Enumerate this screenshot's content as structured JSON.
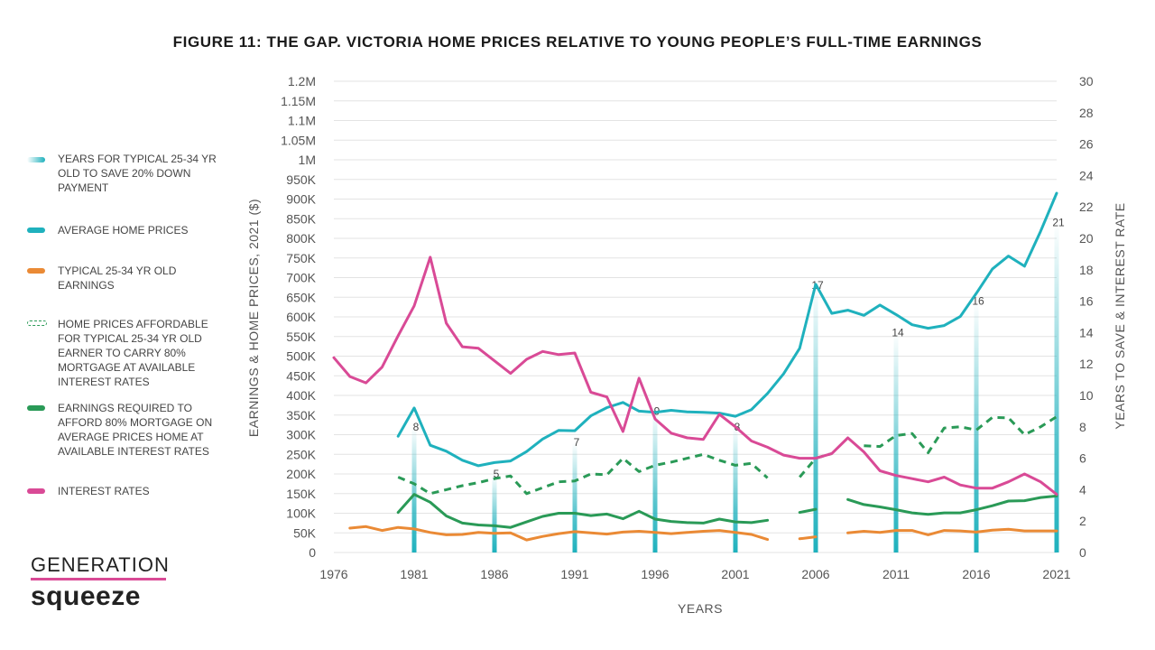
{
  "chart_data": {
    "type": "line",
    "title": "FIGURE 11: THE GAP. VICTORIA HOME PRICES RELATIVE TO YOUNG PEOPLE’S FULL-TIME EARNINGS",
    "xlabel": "YEARS",
    "ylabel_left": "EARNINGS & HOME PRICES, 2021 ($)",
    "ylabel_right": "YEARS TO SAVE & INTEREST RATE",
    "xlim": [
      1976,
      2021
    ],
    "ylim_left": [
      0,
      1200000
    ],
    "ylim_right": [
      0,
      30
    ],
    "x_ticks": [
      1976,
      1981,
      1986,
      1991,
      1996,
      2001,
      2006,
      2011,
      2016,
      2021
    ],
    "y_left_ticks": [
      {
        "v": 0,
        "label": "0"
      },
      {
        "v": 50000,
        "label": "50K"
      },
      {
        "v": 100000,
        "label": "100K"
      },
      {
        "v": 150000,
        "label": "150K"
      },
      {
        "v": 200000,
        "label": "200K"
      },
      {
        "v": 250000,
        "label": "250K"
      },
      {
        "v": 300000,
        "label": "300K"
      },
      {
        "v": 350000,
        "label": "350K"
      },
      {
        "v": 400000,
        "label": "400K"
      },
      {
        "v": 450000,
        "label": "450K"
      },
      {
        "v": 500000,
        "label": "500K"
      },
      {
        "v": 550000,
        "label": "550K"
      },
      {
        "v": 600000,
        "label": "600K"
      },
      {
        "v": 650000,
        "label": "650K"
      },
      {
        "v": 700000,
        "label": "700K"
      },
      {
        "v": 750000,
        "label": "750K"
      },
      {
        "v": 800000,
        "label": "800K"
      },
      {
        "v": 850000,
        "label": "850K"
      },
      {
        "v": 900000,
        "label": "900K"
      },
      {
        "v": 950000,
        "label": "950K"
      },
      {
        "v": 1000000,
        "label": "1M"
      },
      {
        "v": 1050000,
        "label": "1.05M"
      },
      {
        "v": 1100000,
        "label": "1.1M"
      },
      {
        "v": 1150000,
        "label": "1.15M"
      },
      {
        "v": 1200000,
        "label": "1.2M"
      }
    ],
    "y_right_ticks": [
      0,
      2,
      4,
      6,
      8,
      10,
      12,
      14,
      16,
      18,
      20,
      22,
      24,
      26,
      28,
      30
    ],
    "grid": true,
    "legend_position": "left",
    "bars": {
      "name": "YEARS FOR TYPICAL 25-34 YR OLD TO SAVE 20% DOWN PAYMENT",
      "color": "#22b3bf",
      "points": [
        {
          "x": 1981,
          "y": 8
        },
        {
          "x": 1986,
          "y": 5
        },
        {
          "x": 1991,
          "y": 7
        },
        {
          "x": 1996,
          "y": 9
        },
        {
          "x": 2001,
          "y": 8
        },
        {
          "x": 2006,
          "y": 17
        },
        {
          "x": 2011,
          "y": 14
        },
        {
          "x": 2016,
          "y": 16
        },
        {
          "x": 2021,
          "y": 21
        }
      ]
    },
    "series": [
      {
        "name": "AVERAGE HOME PRICES",
        "color": "#1fb1bd",
        "axis": "left",
        "dash": false,
        "points": [
          [
            1980,
            296000
          ],
          [
            1981,
            368000
          ],
          [
            1982,
            273000
          ],
          [
            1983,
            258000
          ],
          [
            1984,
            235000
          ],
          [
            1985,
            221000
          ],
          [
            1986,
            229000
          ],
          [
            1987,
            233000
          ],
          [
            1988,
            257000
          ],
          [
            1989,
            289000
          ],
          [
            1990,
            311000
          ],
          [
            1991,
            310000
          ],
          [
            1992,
            348000
          ],
          [
            1993,
            369000
          ],
          [
            1994,
            382000
          ],
          [
            1995,
            360000
          ],
          [
            1996,
            357000
          ],
          [
            1997,
            362000
          ],
          [
            1998,
            358000
          ],
          [
            1999,
            357000
          ],
          [
            2000,
            355000
          ],
          [
            2001,
            347000
          ],
          [
            2002,
            364000
          ],
          [
            2003,
            405000
          ],
          [
            2004,
            455000
          ],
          [
            2005,
            520000
          ],
          [
            2006,
            683000
          ],
          [
            2007,
            609000
          ],
          [
            2008,
            617000
          ],
          [
            2009,
            604000
          ],
          [
            2010,
            630000
          ],
          [
            2011,
            606000
          ],
          [
            2012,
            580000
          ],
          [
            2013,
            571000
          ],
          [
            2014,
            578000
          ],
          [
            2015,
            601000
          ],
          [
            2016,
            660000
          ],
          [
            2017,
            722000
          ],
          [
            2018,
            755000
          ],
          [
            2019,
            729000
          ],
          [
            2020,
            818000
          ],
          [
            2021,
            915000
          ]
        ]
      },
      {
        "name": "TYPICAL 25-34 YR OLD EARNINGS",
        "color": "#ea8a35",
        "axis": "left",
        "dash": false,
        "points": [
          [
            1977,
            62000
          ],
          [
            1978,
            66000
          ],
          [
            1979,
            56000
          ],
          [
            1980,
            64000
          ],
          [
            1981,
            60000
          ],
          [
            1982,
            51000
          ],
          [
            1983,
            45000
          ],
          [
            1984,
            46000
          ],
          [
            1985,
            51000
          ],
          [
            1986,
            49000
          ],
          [
            1987,
            50000
          ],
          [
            1988,
            32000
          ],
          [
            1989,
            41000
          ],
          [
            1990,
            48000
          ],
          [
            1991,
            53000
          ],
          [
            1992,
            50000
          ],
          [
            1993,
            47000
          ],
          [
            1994,
            52000
          ],
          [
            1995,
            54000
          ],
          [
            1996,
            51000
          ],
          [
            1997,
            48000
          ],
          [
            1998,
            51000
          ],
          [
            1999,
            54000
          ],
          [
            2000,
            56000
          ],
          [
            2001,
            51000
          ],
          [
            2002,
            46000
          ],
          [
            2003,
            33000
          ],
          null,
          [
            2005,
            35000
          ],
          [
            2006,
            40000
          ],
          null,
          [
            2008,
            50000
          ],
          [
            2009,
            54000
          ],
          [
            2010,
            51000
          ],
          [
            2011,
            56000
          ],
          [
            2012,
            56000
          ],
          [
            2013,
            45000
          ],
          [
            2014,
            56000
          ],
          [
            2015,
            55000
          ],
          [
            2016,
            52000
          ],
          [
            2017,
            57000
          ],
          [
            2018,
            59000
          ],
          [
            2019,
            55000
          ],
          [
            2020,
            55000
          ],
          [
            2021,
            55000
          ]
        ]
      },
      {
        "name": "HOME PRICES AFFORDABLE FOR TYPICAL 25-34 YR OLD EARNER TO CARRY 80% MORTGAGE AT AVAILABLE INTEREST RATES",
        "color": "#2a9a57",
        "axis": "left",
        "dash": true,
        "points": [
          [
            1980,
            192000
          ],
          [
            1981,
            175000
          ],
          [
            1982,
            150000
          ],
          [
            1983,
            160000
          ],
          [
            1984,
            170000
          ],
          [
            1985,
            178000
          ],
          [
            1986,
            188000
          ],
          [
            1987,
            195000
          ],
          [
            1988,
            150000
          ],
          [
            1989,
            165000
          ],
          [
            1990,
            180000
          ],
          [
            1991,
            182000
          ],
          [
            1992,
            200000
          ],
          [
            1993,
            198000
          ],
          [
            1994,
            240000
          ],
          [
            1995,
            206000
          ],
          [
            1996,
            222000
          ],
          [
            1997,
            230000
          ],
          [
            1998,
            240000
          ],
          [
            1999,
            250000
          ],
          [
            2000,
            235000
          ],
          [
            2001,
            222000
          ],
          [
            2002,
            227000
          ],
          [
            2003,
            190000
          ],
          null,
          [
            2005,
            192000
          ],
          [
            2006,
            240000
          ],
          [
            2007,
            252000
          ],
          null,
          [
            2009,
            272000
          ],
          [
            2010,
            270000
          ],
          [
            2011,
            298000
          ],
          [
            2012,
            303000
          ],
          [
            2013,
            254000
          ],
          [
            2014,
            317000
          ],
          [
            2015,
            320000
          ],
          [
            2016,
            312000
          ],
          [
            2017,
            344000
          ],
          [
            2018,
            343000
          ],
          [
            2019,
            300000
          ],
          [
            2020,
            320000
          ],
          [
            2021,
            346000
          ]
        ]
      },
      {
        "name": "EARNINGS REQUIRED TO AFFORD 80% MORTGAGE ON AVERAGE PRICES HOME AT AVAILABLE INTEREST RATES",
        "color": "#2a9a57",
        "axis": "left",
        "dash": false,
        "points": [
          [
            1980,
            102000
          ],
          [
            1981,
            148000
          ],
          [
            1982,
            128000
          ],
          [
            1983,
            93000
          ],
          [
            1984,
            75000
          ],
          [
            1985,
            70000
          ],
          [
            1986,
            68000
          ],
          [
            1987,
            64000
          ],
          [
            1988,
            78000
          ],
          [
            1989,
            92000
          ],
          [
            1990,
            100000
          ],
          [
            1991,
            100000
          ],
          [
            1992,
            94000
          ],
          [
            1993,
            98000
          ],
          [
            1994,
            86000
          ],
          [
            1995,
            105000
          ],
          [
            1996,
            85000
          ],
          [
            1997,
            79000
          ],
          [
            1998,
            76000
          ],
          [
            1999,
            75000
          ],
          [
            2000,
            85000
          ],
          [
            2001,
            78000
          ],
          [
            2002,
            76000
          ],
          [
            2003,
            82000
          ],
          null,
          [
            2005,
            102000
          ],
          [
            2006,
            110000
          ],
          null,
          [
            2008,
            135000
          ],
          [
            2009,
            122000
          ],
          [
            2010,
            116000
          ],
          [
            2011,
            109000
          ],
          [
            2012,
            101000
          ],
          [
            2013,
            97000
          ],
          [
            2014,
            101000
          ],
          [
            2015,
            101000
          ],
          [
            2016,
            109000
          ],
          [
            2017,
            119000
          ],
          [
            2018,
            131000
          ],
          [
            2019,
            132000
          ],
          [
            2020,
            140000
          ],
          [
            2021,
            144000
          ]
        ]
      },
      {
        "name": "INTEREST RATES",
        "color": "#d94a96",
        "axis": "right",
        "dash": false,
        "points": [
          [
            1976,
            12.4
          ],
          [
            1977,
            11.2
          ],
          [
            1978,
            10.8
          ],
          [
            1979,
            11.8
          ],
          [
            1980,
            13.8
          ],
          [
            1981,
            15.7
          ],
          [
            1982,
            18.8
          ],
          [
            1983,
            14.6
          ],
          [
            1984,
            13.1
          ],
          [
            1985,
            13.0
          ],
          [
            1986,
            12.2
          ],
          [
            1987,
            11.4
          ],
          [
            1988,
            12.3
          ],
          [
            1989,
            12.8
          ],
          [
            1990,
            12.6
          ],
          [
            1991,
            12.7
          ],
          [
            1992,
            10.2
          ],
          [
            1993,
            9.9
          ],
          [
            1994,
            7.7
          ],
          [
            1995,
            11.1
          ],
          [
            1996,
            8.5
          ],
          [
            1997,
            7.6
          ],
          [
            1998,
            7.3
          ],
          [
            1999,
            7.2
          ],
          [
            2000,
            8.8
          ],
          [
            2001,
            8.0
          ],
          [
            2002,
            7.1
          ],
          [
            2003,
            6.7
          ],
          [
            2004,
            6.2
          ],
          [
            2005,
            6.0
          ],
          [
            2006,
            6.0
          ],
          [
            2007,
            6.3
          ],
          [
            2008,
            7.3
          ],
          [
            2009,
            6.4
          ],
          [
            2010,
            5.2
          ],
          [
            2011,
            4.9
          ],
          [
            2012,
            4.7
          ],
          [
            2013,
            4.5
          ],
          [
            2014,
            4.8
          ],
          [
            2015,
            4.3
          ],
          [
            2016,
            4.1
          ],
          [
            2017,
            4.1
          ],
          [
            2018,
            4.5
          ],
          [
            2019,
            5.0
          ],
          [
            2020,
            4.5
          ],
          [
            2021,
            3.7
          ]
        ]
      }
    ]
  },
  "legend": [
    {
      "label": "YEARS FOR TYPICAL 25-34 YR OLD TO SAVE 20% DOWN PAYMENT"
    },
    {
      "label": "AVERAGE HOME PRICES"
    },
    {
      "label": "TYPICAL 25-34 YR OLD EARNINGS"
    },
    {
      "label": "HOME PRICES AFFORDABLE FOR TYPICAL 25-34 YR OLD EARNER TO CARRY 80% MORTGAGE AT AVAILABLE INTEREST RATES"
    },
    {
      "label": "EARNINGS REQUIRED TO AFFORD 80% MORTGAGE ON AVERAGE PRICES HOME AT AVAILABLE INTEREST RATES"
    },
    {
      "label": "INTEREST RATES"
    }
  ],
  "logo": {
    "top": "GENERATION",
    "bottom": "squeeze",
    "bar_color": "#d94a96"
  }
}
